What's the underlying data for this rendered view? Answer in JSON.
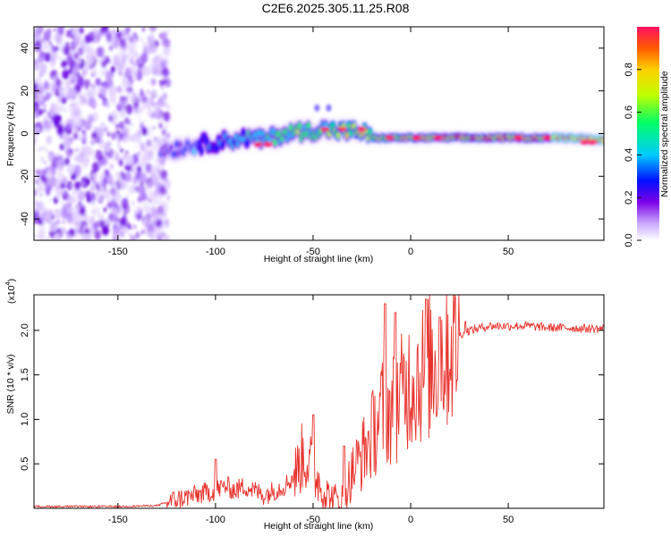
{
  "title": "C2E6.2025.305.11.25.R08",
  "chart_data": [
    {
      "type": "heatmap",
      "name": "spectrogram",
      "xlabel": "Height of straight line (km)",
      "ylabel": "Frequency (Hz)",
      "xlim": [
        -193,
        99
      ],
      "ylim": [
        -50,
        50
      ],
      "xticks": [
        -150,
        -100,
        -50,
        0,
        50
      ],
      "xtick_labels": [
        "-150",
        "-100",
        "-50",
        "0",
        "50"
      ],
      "yticks": [
        40,
        20,
        0,
        -20,
        -40
      ],
      "ytick_labels": [
        "40",
        "20",
        "0",
        "-20",
        "-40"
      ],
      "colorbar": {
        "label": "Normalized spectral amplitude",
        "range": [
          0,
          1
        ],
        "ticks": [
          0.0,
          0.2,
          0.4,
          0.6,
          0.8
        ],
        "tick_labels": [
          "0.0",
          "0.2",
          "0.4",
          "0.6",
          "0.8"
        ],
        "colors": [
          "#ffffff",
          "#c9a8ff",
          "#7a00e6",
          "#0010ff",
          "#00ccff",
          "#00ff66",
          "#bfff00",
          "#ffd000",
          "#ff5a00",
          "#ff1060"
        ]
      },
      "ridge": {
        "x": [
          -128,
          -115,
          -100,
          -85,
          -75,
          -65,
          -55,
          -45,
          -35,
          -25,
          -20,
          -10,
          0,
          10,
          25,
          40,
          55,
          70,
          85,
          97
        ],
        "freq": [
          -8,
          -6,
          -4,
          -2,
          -3,
          0,
          1,
          2,
          1,
          1,
          -2,
          -2,
          -2,
          -2,
          -2,
          -2,
          -2,
          -2,
          -2,
          -3
        ],
        "amplitude": [
          0.3,
          0.35,
          0.4,
          0.45,
          0.5,
          0.55,
          0.6,
          0.6,
          0.65,
          0.7,
          0.65,
          0.75,
          0.8,
          0.8,
          0.85,
          0.85,
          0.85,
          0.85,
          0.95,
          0.95
        ]
      },
      "noise_region_x": [
        -193,
        -128
      ]
    },
    {
      "type": "line",
      "name": "snr",
      "xlabel": "Height of straight line (km)",
      "ylabel": "SNR (10 * v/v)",
      "yscale_label": "(x10",
      "yscale_exp": "4",
      "xlim": [
        -193,
        99
      ],
      "ylim": [
        0,
        2.4
      ],
      "xticks": [
        -150,
        -100,
        -50,
        0,
        50
      ],
      "xtick_labels": [
        "-150",
        "-100",
        "-50",
        "0",
        "50"
      ],
      "yticks": [
        0.5,
        1.0,
        1.5,
        2.0
      ],
      "ytick_labels": [
        "0.5",
        "1.0",
        "1.5",
        "2.0"
      ],
      "series": [
        {
          "name": "SNR",
          "color": "#e8312b",
          "x": [
            -193,
            -150,
            -130,
            -120,
            -110,
            -100,
            -95,
            -90,
            -85,
            -80,
            -75,
            -70,
            -65,
            -60,
            -55,
            -52,
            -50,
            -45,
            -40,
            -35,
            -30,
            -25,
            -20,
            -15,
            -10,
            -5,
            0,
            5,
            10,
            15,
            20,
            25,
            30,
            40,
            50,
            60,
            70,
            80,
            90,
            99
          ],
          "y": [
            0.02,
            0.02,
            0.03,
            0.1,
            0.15,
            0.2,
            0.25,
            0.2,
            0.25,
            0.2,
            0.15,
            0.2,
            0.25,
            0.35,
            0.6,
            0.5,
            0.45,
            0.2,
            0.1,
            0.1,
            0.4,
            0.6,
            0.8,
            1.1,
            1.1,
            1.25,
            1.45,
            1.5,
            1.6,
            1.7,
            1.85,
            1.95,
            2.0,
            2.05,
            2.05,
            2.05,
            2.03,
            2.03,
            2.02,
            2.02
          ],
          "peaks": [
            [
              -100,
              0.55
            ],
            [
              -50,
              1.05
            ],
            [
              -34,
              0.7
            ],
            [
              -13,
              2.3
            ],
            [
              -8,
              2.2
            ],
            [
              8,
              2.35
            ],
            [
              15,
              2.15
            ],
            [
              28,
              2.1
            ]
          ]
        }
      ]
    }
  ]
}
